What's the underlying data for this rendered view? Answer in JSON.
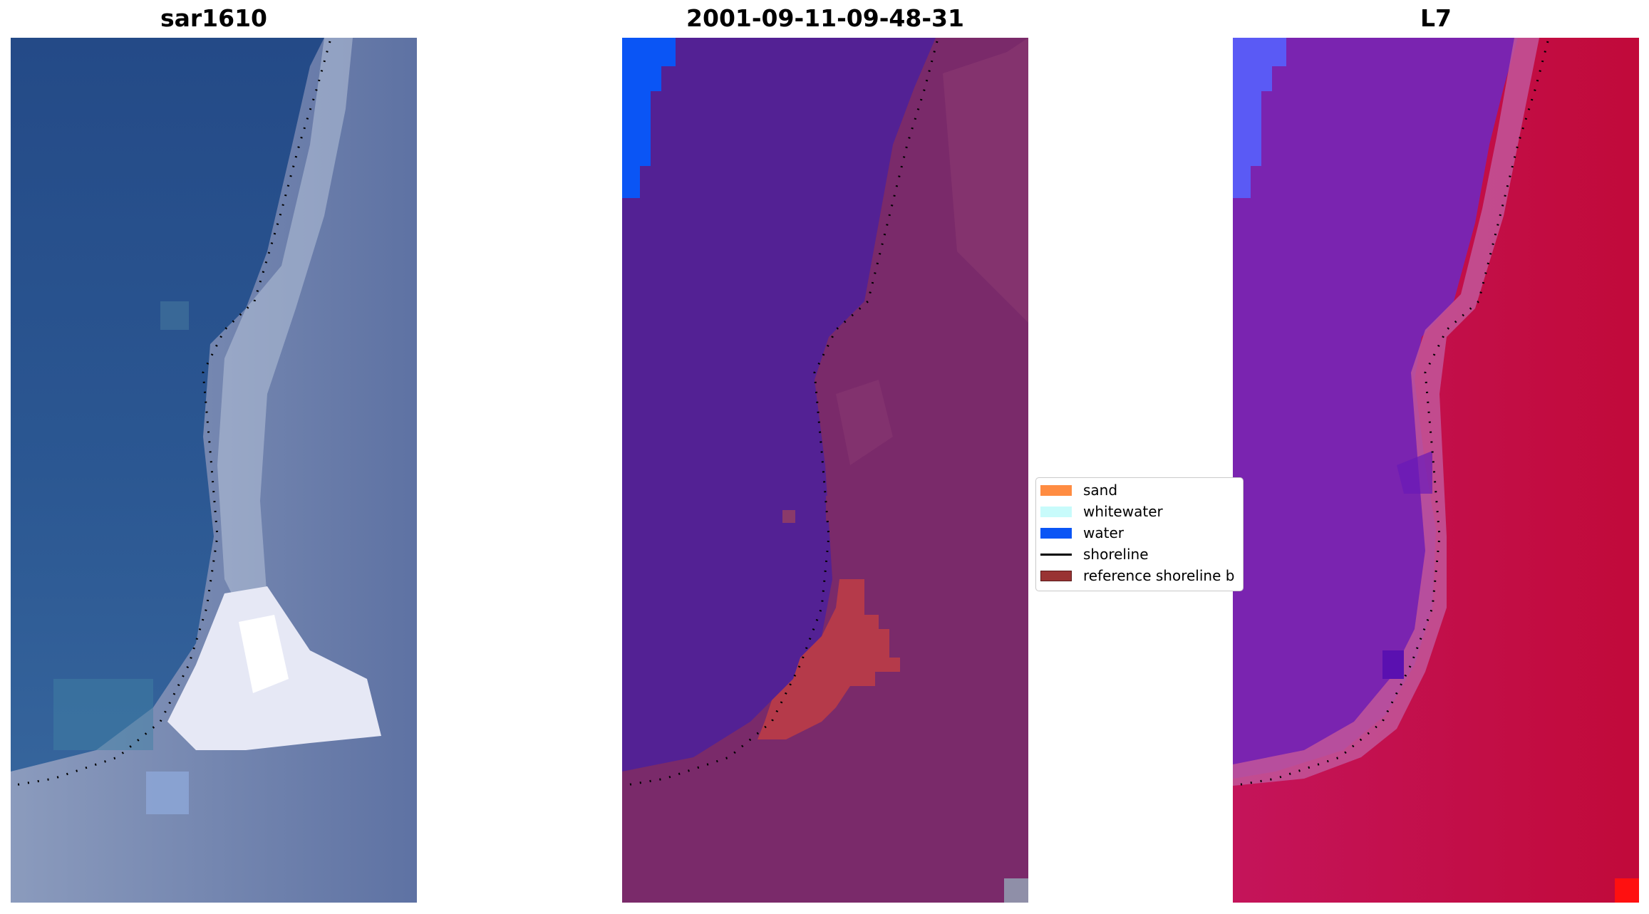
{
  "panels": [
    {
      "title": "sar1610"
    },
    {
      "title": "2001-09-11-09-48-31"
    },
    {
      "title": "L7"
    }
  ],
  "legend": {
    "items": [
      {
        "label": "sand",
        "color": "#ff8c42",
        "kind": "patch"
      },
      {
        "label": "whitewater",
        "color": "#c8fbfb",
        "kind": "patch"
      },
      {
        "label": "water",
        "color": "#0a55f5",
        "kind": "patch"
      },
      {
        "label": "shoreline",
        "color": "#000000",
        "kind": "line"
      },
      {
        "label": "reference shoreline b",
        "color": "#993333",
        "kind": "patch"
      }
    ]
  },
  "colors": {
    "rgb_sea": "#2a4d8a",
    "rgb_land": "#6d80a8",
    "classified_water": "#532194",
    "classified_land": "#7a2a6a",
    "classified_sand_overlay": "#b53a4a",
    "classified_water_blue": "#0a55f5",
    "l7_water": "#7a24b0",
    "l7_land": "#c8103f",
    "l7_blue": "#5a5af5",
    "shoreline": "#000000"
  }
}
